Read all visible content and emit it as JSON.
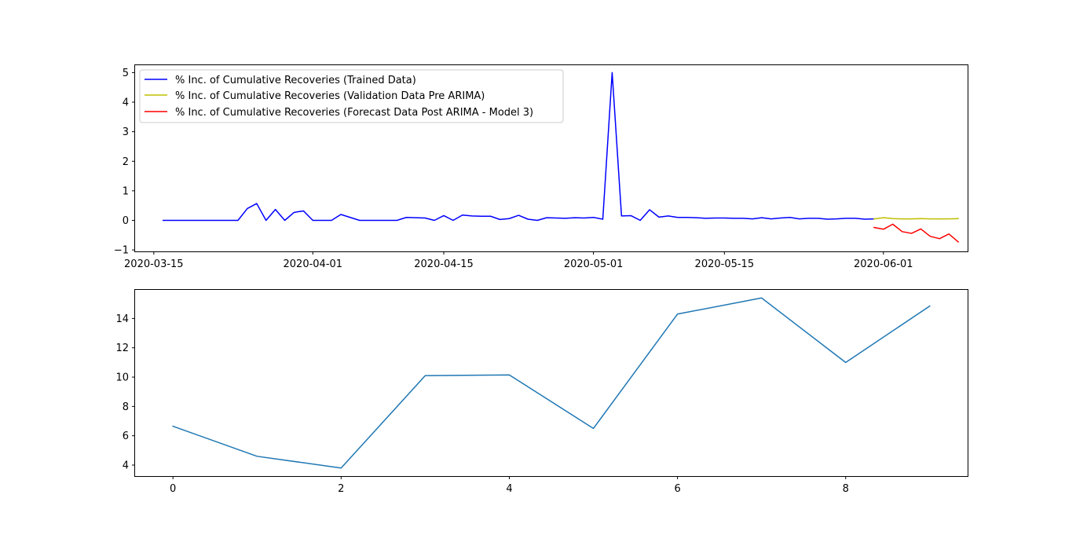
{
  "chart_data": [
    {
      "type": "line",
      "title": "",
      "xlabel": "",
      "ylabel": "",
      "x_axis_type": "date",
      "xlim": [
        "2020-03-13",
        "2020-06-10"
      ],
      "ylim": [
        -1.05,
        5.25
      ],
      "x_ticks": [
        "2020-03-15",
        "2020-04-01",
        "2020-04-15",
        "2020-05-01",
        "2020-05-15",
        "2020-06-01"
      ],
      "y_ticks": [
        -1,
        0,
        1,
        2,
        3,
        4,
        5
      ],
      "grid": false,
      "legend_position": "upper left",
      "series": [
        {
          "name": "% Inc. of Cumulative Recoveries (Trained Data)",
          "color": "#0000ff",
          "x": [
            "2020-03-16",
            "2020-03-17",
            "2020-03-18",
            "2020-03-19",
            "2020-03-20",
            "2020-03-21",
            "2020-03-22",
            "2020-03-23",
            "2020-03-24",
            "2020-03-25",
            "2020-03-26",
            "2020-03-27",
            "2020-03-28",
            "2020-03-29",
            "2020-03-30",
            "2020-03-31",
            "2020-04-01",
            "2020-04-02",
            "2020-04-03",
            "2020-04-04",
            "2020-04-05",
            "2020-04-06",
            "2020-04-07",
            "2020-04-08",
            "2020-04-09",
            "2020-04-10",
            "2020-04-11",
            "2020-04-12",
            "2020-04-13",
            "2020-04-14",
            "2020-04-15",
            "2020-04-16",
            "2020-04-17",
            "2020-04-18",
            "2020-04-19",
            "2020-04-20",
            "2020-04-21",
            "2020-04-22",
            "2020-04-23",
            "2020-04-24",
            "2020-04-25",
            "2020-04-26",
            "2020-04-27",
            "2020-04-28",
            "2020-04-29",
            "2020-04-30",
            "2020-05-01",
            "2020-05-02",
            "2020-05-03",
            "2020-05-04",
            "2020-05-05",
            "2020-05-06",
            "2020-05-07",
            "2020-05-08",
            "2020-05-09",
            "2020-05-10",
            "2020-05-11",
            "2020-05-12",
            "2020-05-13",
            "2020-05-14",
            "2020-05-15",
            "2020-05-16",
            "2020-05-17",
            "2020-05-18",
            "2020-05-19",
            "2020-05-20",
            "2020-05-21",
            "2020-05-22",
            "2020-05-23",
            "2020-05-24",
            "2020-05-25",
            "2020-05-26",
            "2020-05-27",
            "2020-05-28",
            "2020-05-29",
            "2020-05-30",
            "2020-05-31"
          ],
          "y": [
            0,
            0,
            0,
            0,
            0,
            0,
            0,
            0,
            0,
            0.4,
            0.57,
            0,
            0.37,
            0,
            0.27,
            0.32,
            0,
            0,
            0,
            0.2,
            0.1,
            0,
            0,
            0,
            0,
            0,
            0.1,
            0.09,
            0.08,
            0,
            0.16,
            0,
            0.18,
            0.15,
            0.14,
            0.14,
            0.03,
            0.06,
            0.17,
            0.04,
            0,
            0.09,
            0.08,
            0.07,
            0.09,
            0.08,
            0.1,
            0.04,
            5.0,
            0.15,
            0.16,
            0,
            0.36,
            0.11,
            0.15,
            0.1,
            0.1,
            0.09,
            0.07,
            0.08,
            0.08,
            0.07,
            0.07,
            0.05,
            0.09,
            0.05,
            0.08,
            0.1,
            0.05,
            0.07,
            0.07,
            0.04,
            0.05,
            0.07,
            0.07,
            0.04,
            0.05
          ]
        },
        {
          "name": "% Inc. of Cumulative Recoveries (Validation Data Pre ARIMA)",
          "color": "#bfbf00",
          "x": [
            "2020-05-31",
            "2020-06-01",
            "2020-06-02",
            "2020-06-03",
            "2020-06-04",
            "2020-06-05",
            "2020-06-06",
            "2020-06-07",
            "2020-06-08",
            "2020-06-09"
          ],
          "y": [
            0.05,
            0.09,
            0.06,
            0.05,
            0.05,
            0.06,
            0.05,
            0.05,
            0.05,
            0.06
          ]
        },
        {
          "name": "% Inc. of Cumulative Recoveries (Forecast Data Post ARIMA - Model 3)",
          "color": "#ff0000",
          "x": [
            "2020-05-31",
            "2020-06-01",
            "2020-06-02",
            "2020-06-03",
            "2020-06-04",
            "2020-06-05",
            "2020-06-06",
            "2020-06-07",
            "2020-06-08",
            "2020-06-09"
          ],
          "y": [
            -0.24,
            -0.3,
            -0.13,
            -0.38,
            -0.44,
            -0.29,
            -0.54,
            -0.62,
            -0.46,
            -0.73
          ]
        }
      ]
    },
    {
      "type": "line",
      "title": "",
      "xlabel": "",
      "ylabel": "",
      "xlim": [
        -0.45,
        9.45
      ],
      "ylim": [
        3.25,
        15.95
      ],
      "x_ticks": [
        0,
        2,
        4,
        6,
        8
      ],
      "y_ticks": [
        4,
        6,
        8,
        10,
        12,
        14
      ],
      "grid": false,
      "series": [
        {
          "color": "#1f77b4",
          "x": [
            0,
            1,
            2,
            3,
            4,
            5,
            6,
            7,
            8,
            9
          ],
          "y": [
            6.65,
            4.6,
            3.8,
            10.1,
            10.15,
            6.5,
            14.3,
            15.4,
            11.0,
            14.85
          ]
        }
      ]
    }
  ]
}
